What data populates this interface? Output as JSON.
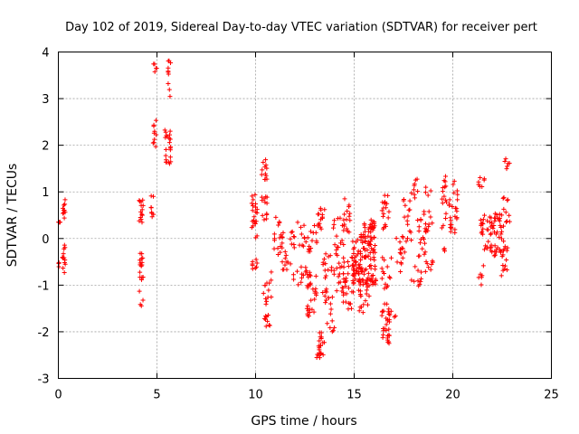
{
  "chart_data": {
    "type": "scatter",
    "title": "Day 102 of 2019, Sidereal Day-to-day VTEC variation (SDTVAR) for receiver pert",
    "xlabel": "GPS time / hours",
    "ylabel": "SDTVAR / TECUs",
    "xlim": [
      0,
      25
    ],
    "ylim": [
      -3,
      4
    ],
    "xticks": [
      0,
      5,
      10,
      15,
      20,
      25
    ],
    "yticks": [
      -3,
      -2,
      -1,
      0,
      1,
      2,
      3,
      4
    ],
    "grid": true,
    "marker": "+",
    "color": "#ff0000",
    "series": [
      {
        "name": "SDTVAR",
        "clusters": [
          {
            "x": [
              0.0,
              0.1
            ],
            "y": [
              0.35,
              0.35
            ],
            "n": 4
          },
          {
            "x": [
              0.0,
              0.05
            ],
            "y": [
              -0.7,
              -0.5
            ],
            "n": 3
          },
          {
            "x": [
              0.2,
              0.35
            ],
            "y": [
              0.4,
              0.95
            ],
            "n": 10
          },
          {
            "x": [
              0.2,
              0.35
            ],
            "y": [
              -0.75,
              -0.1
            ],
            "n": 12
          },
          {
            "x": [
              4.1,
              4.3
            ],
            "y": [
              0.3,
              0.85
            ],
            "n": 14
          },
          {
            "x": [
              4.1,
              4.3
            ],
            "y": [
              -1.1,
              -0.3
            ],
            "n": 16
          },
          {
            "x": [
              4.1,
              4.3
            ],
            "y": [
              -1.65,
              -1.1
            ],
            "n": 4
          },
          {
            "x": [
              4.7,
              4.9
            ],
            "y": [
              0.4,
              1.05
            ],
            "n": 8
          },
          {
            "x": [
              4.8,
              5.0
            ],
            "y": [
              1.95,
              2.75
            ],
            "n": 10
          },
          {
            "x": [
              4.8,
              5.0
            ],
            "y": [
              3.55,
              3.8
            ],
            "n": 5
          },
          {
            "x": [
              5.4,
              5.7
            ],
            "y": [
              1.6,
              2.4
            ],
            "n": 22
          },
          {
            "x": [
              5.5,
              5.7
            ],
            "y": [
              3.0,
              3.9
            ],
            "n": 10
          },
          {
            "x": [
              9.8,
              10.1
            ],
            "y": [
              0.0,
              0.95
            ],
            "n": 22
          },
          {
            "x": [
              9.8,
              10.1
            ],
            "y": [
              -0.75,
              -0.45
            ],
            "n": 8
          },
          {
            "x": [
              10.3,
              10.6
            ],
            "y": [
              0.4,
              1.8
            ],
            "n": 24
          },
          {
            "x": [
              10.4,
              10.8
            ],
            "y": [
              -1.9,
              -0.6
            ],
            "n": 22
          },
          {
            "x": [
              10.9,
              11.4
            ],
            "y": [
              -0.4,
              0.5
            ],
            "n": 18
          },
          {
            "x": [
              11.3,
              11.8
            ],
            "y": [
              -0.7,
              -0.2
            ],
            "n": 12
          },
          {
            "x": [
              11.7,
              12.1
            ],
            "y": [
              -0.3,
              0.15
            ],
            "n": 8
          },
          {
            "x": [
              11.9,
              12.6
            ],
            "y": [
              -1.1,
              -0.6
            ],
            "n": 12
          },
          {
            "x": [
              12.1,
              12.6
            ],
            "y": [
              -0.2,
              0.35
            ],
            "n": 10
          },
          {
            "x": [
              12.6,
              13.1
            ],
            "y": [
              -1.7,
              -0.7
            ],
            "n": 30
          },
          {
            "x": [
              12.6,
              13.1
            ],
            "y": [
              -0.3,
              0.3
            ],
            "n": 14
          },
          {
            "x": [
              13.1,
              13.5
            ],
            "y": [
              -2.6,
              -2.0
            ],
            "n": 22
          },
          {
            "x": [
              13.1,
              13.5
            ],
            "y": [
              0.2,
              0.7
            ],
            "n": 14
          },
          {
            "x": [
              13.4,
              13.9
            ],
            "y": [
              -1.5,
              -0.3
            ],
            "n": 24
          },
          {
            "x": [
              13.6,
              14.0
            ],
            "y": [
              -2.0,
              -1.5
            ],
            "n": 8
          },
          {
            "x": [
              13.9,
              14.5
            ],
            "y": [
              -0.8,
              0.5
            ],
            "n": 28
          },
          {
            "x": [
              14.1,
              14.6
            ],
            "y": [
              -1.3,
              -0.8
            ],
            "n": 10
          },
          {
            "x": [
              14.4,
              15.0
            ],
            "y": [
              -1.55,
              -0.4
            ],
            "n": 26
          },
          {
            "x": [
              14.4,
              15.0
            ],
            "y": [
              0.1,
              0.95
            ],
            "n": 14
          },
          {
            "x": [
              14.9,
              15.6
            ],
            "y": [
              -1.0,
              0.1
            ],
            "n": 70
          },
          {
            "x": [
              15.2,
              15.8
            ],
            "y": [
              -1.6,
              -1.0
            ],
            "n": 16
          },
          {
            "x": [
              15.5,
              16.1
            ],
            "y": [
              -0.9,
              0.4
            ],
            "n": 50
          },
          {
            "x": [
              15.6,
              16.1
            ],
            "y": [
              -1.05,
              -0.85
            ],
            "n": 14
          },
          {
            "x": [
              15.7,
              16.1
            ],
            "y": [
              0.2,
              0.4
            ],
            "n": 10
          },
          {
            "x": [
              16.4,
              16.8
            ],
            "y": [
              -2.35,
              -1.4
            ],
            "n": 30
          },
          {
            "x": [
              16.4,
              16.8
            ],
            "y": [
              0.2,
              1.0
            ],
            "n": 18
          },
          {
            "x": [
              16.4,
              16.9
            ],
            "y": [
              -1.1,
              -0.3
            ],
            "n": 14
          },
          {
            "x": [
              16.8,
              17.1
            ],
            "y": [
              -1.7,
              -1.5
            ],
            "n": 4
          },
          {
            "x": [
              17.1,
              17.5
            ],
            "y": [
              -0.8,
              0.1
            ],
            "n": 12
          },
          {
            "x": [
              17.3,
              17.6
            ],
            "y": [
              -0.3,
              -0.2
            ],
            "n": 4
          },
          {
            "x": [
              17.5,
              17.9
            ],
            "y": [
              -0.1,
              0.95
            ],
            "n": 14
          },
          {
            "x": [
              17.8,
              18.1
            ],
            "y": [
              0.8,
              1.0
            ],
            "n": 4
          },
          {
            "x": [
              17.9,
              18.3
            ],
            "y": [
              1.0,
              1.35
            ],
            "n": 6
          },
          {
            "x": [
              17.9,
              18.4
            ],
            "y": [
              -1.1,
              -0.6
            ],
            "n": 10
          },
          {
            "x": [
              18.2,
              18.7
            ],
            "y": [
              -0.4,
              0.6
            ],
            "n": 18
          },
          {
            "x": [
              18.6,
              19.0
            ],
            "y": [
              -0.75,
              -0.3
            ],
            "n": 8
          },
          {
            "x": [
              18.6,
              19.0
            ],
            "y": [
              0.0,
              1.1
            ],
            "n": 14
          },
          {
            "x": [
              19.4,
              19.7
            ],
            "y": [
              0.2,
              1.4
            ],
            "n": 16
          },
          {
            "x": [
              19.5,
              19.7
            ],
            "y": [
              -0.3,
              -0.2
            ],
            "n": 3
          },
          {
            "x": [
              19.8,
              20.3
            ],
            "y": [
              0.1,
              1.25
            ],
            "n": 26
          },
          {
            "x": [
              21.3,
              21.6
            ],
            "y": [
              1.1,
              1.4
            ],
            "n": 8
          },
          {
            "x": [
              21.3,
              21.6
            ],
            "y": [
              -1.0,
              -0.5
            ],
            "n": 6
          },
          {
            "x": [
              21.4,
              22.0
            ],
            "y": [
              -0.3,
              0.5
            ],
            "n": 24
          },
          {
            "x": [
              21.9,
              22.6
            ],
            "y": [
              -0.4,
              0.6
            ],
            "n": 40
          },
          {
            "x": [
              22.4,
              22.9
            ],
            "y": [
              -0.8,
              0.1
            ],
            "n": 16
          },
          {
            "x": [
              22.5,
              22.9
            ],
            "y": [
              0.3,
              0.9
            ],
            "n": 10
          },
          {
            "x": [
              22.6,
              22.9
            ],
            "y": [
              1.45,
              1.75
            ],
            "n": 6
          }
        ]
      }
    ]
  }
}
